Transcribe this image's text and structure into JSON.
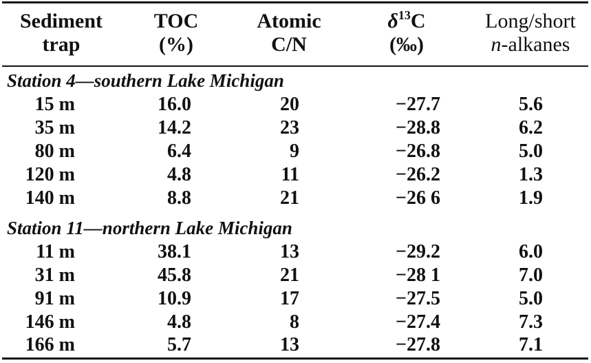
{
  "headers": {
    "trap": [
      "Sediment",
      "trap"
    ],
    "toc": [
      "TOC",
      "(%)"
    ],
    "cn": [
      "Atomic",
      "C/N"
    ],
    "d13c": {
      "delta": "δ",
      "sup": "13",
      "tail": "C",
      "unit": "(‰)"
    },
    "alkanes": {
      "line1": "Long/short",
      "italic": "n",
      "line2_rest": "-alkanes"
    }
  },
  "sections": [
    {
      "title": "Station 4—southern Lake Michigan",
      "rows": [
        {
          "trap": "15 m",
          "toc": "16.0",
          "cn": "20",
          "d13c": "−27.7",
          "alkanes": "5.6"
        },
        {
          "trap": "35 m",
          "toc": "14.2",
          "cn": "23",
          "d13c": "−28.8",
          "alkanes": "6.2"
        },
        {
          "trap": "80 m",
          "toc": "6.4",
          "cn": "9",
          "d13c": "−26.8",
          "alkanes": "5.0"
        },
        {
          "trap": "120 m",
          "toc": "4.8",
          "cn": "11",
          "d13c": "−26.2",
          "alkanes": "1.3"
        },
        {
          "trap": "140 m",
          "toc": "8.8",
          "cn": "21",
          "d13c": "−26 6",
          "alkanes": "1.9"
        }
      ]
    },
    {
      "title": "Station 11—northern Lake Michigan",
      "rows": [
        {
          "trap": "11 m",
          "toc": "38.1",
          "cn": "13",
          "d13c": "−29.2",
          "alkanes": "6.0"
        },
        {
          "trap": "31 m",
          "toc": "45.8",
          "cn": "21",
          "d13c": "−28 1",
          "alkanes": "7.0"
        },
        {
          "trap": "91 m",
          "toc": "10.9",
          "cn": "17",
          "d13c": "−27.5",
          "alkanes": "5.0"
        },
        {
          "trap": "146 m",
          "toc": "4.8",
          "cn": "8",
          "d13c": "−27.4",
          "alkanes": "7.3"
        },
        {
          "trap": "166 m",
          "toc": "5.7",
          "cn": "13",
          "d13c": "−27.8",
          "alkanes": "7.1"
        }
      ]
    }
  ]
}
